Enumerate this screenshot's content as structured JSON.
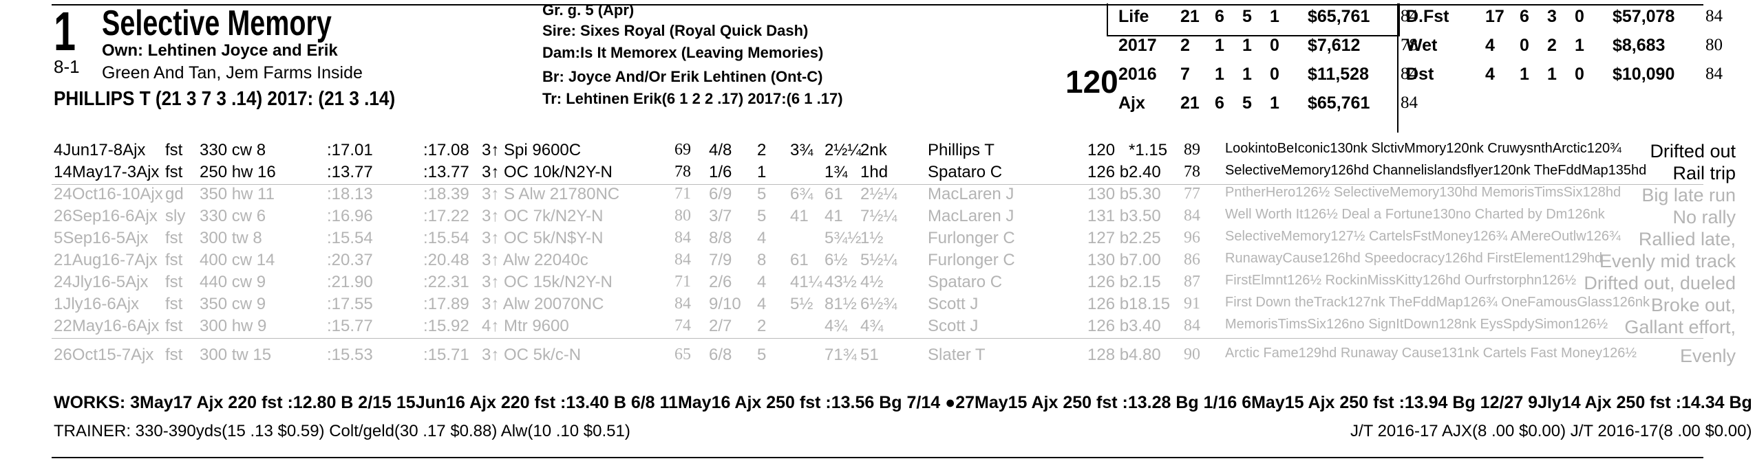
{
  "horse": {
    "program_number": "1",
    "name": "Selective Memory",
    "odds": "8-1",
    "owner": "Own: Lehtinen Joyce and Erik",
    "silks": "Green And Tan, Jem Farms Inside",
    "jockey_line": "PHILLIPS T (21 3 7 3 .14) 2017: (21 3 .14)",
    "weight": "120"
  },
  "breeding": {
    "sex_age": "Gr. g. 5 (Apr)",
    "sire": "Sire: Sixes Royal (Royal Quick Dash)",
    "dam": "Dam:Is It Memorex (Leaving Memories)",
    "breeder": "Br:    Joyce And/Or Erik Lehtinen (Ont-C)",
    "trainer": "Tr:     Lehtinen Erik(6 1 2 2 .17)  2017:(6 1 .17)"
  },
  "stats_left": [
    {
      "label": "Life",
      "starts": "21",
      "w": "6",
      "p": "5",
      "s": "1",
      "earn": "$65,761",
      "speed": "84"
    },
    {
      "label": "2017",
      "starts": "2",
      "w": "1",
      "p": "1",
      "s": "0",
      "earn": "$7,612",
      "speed": "78"
    },
    {
      "label": "2016",
      "starts": "7",
      "w": "1",
      "p": "1",
      "s": "0",
      "earn": "$11,528",
      "speed": "84"
    },
    {
      "label": "Ajx",
      "starts": "21",
      "w": "6",
      "p": "5",
      "s": "1",
      "earn": "$65,761",
      "speed": "84"
    }
  ],
  "stats_right": [
    {
      "label": "D.Fst",
      "starts": "17",
      "w": "6",
      "p": "3",
      "s": "0",
      "earn": "$57,078",
      "speed": "84"
    },
    {
      "label": "Wet",
      "starts": "4",
      "w": "0",
      "p": "2",
      "s": "1",
      "earn": "$8,683",
      "speed": "80"
    },
    {
      "label": "Dst",
      "starts": "4",
      "w": "1",
      "p": "1",
      "s": "0",
      "earn": "$10,090",
      "speed": "84"
    }
  ],
  "past_performances": [
    {
      "date": "4Jun17-8Ajx",
      "cond": "fst",
      "dist": "330 cw 8",
      "f1": ":17.01",
      "f2": ":17.08",
      "race": "3↑ Spi 9600C",
      "spd": "69",
      "pp": "4/8",
      "st": "2",
      "c1": "3¾",
      "c2": "2½¼",
      "fin": "2nk",
      "jock": "Phillips T",
      "wt": "120",
      "odds": "*1.15",
      "sp2": "89",
      "comp": "LookintoBeIconic130nk SlctivMmory120nk CruwysnthArctic120¾",
      "comment": "Drifted out",
      "faded": false
    },
    {
      "date": "14May17-3Ajx",
      "cond": "fst",
      "dist": "250 hw 16",
      "f1": ":13.77",
      "f2": ":13.77",
      "race": "3↑ OC 10k/N2Y-N",
      "spd": "78",
      "pp": "1/6",
      "st": "1",
      "c1": "",
      "c2": "1¾",
      "fin": "1hd",
      "jock": "Spataro C",
      "wt": "126 b",
      "odds": "2.40",
      "sp2": "78",
      "comp": "SelectiveMemory126hd Channelislandsflyer120nk TheFddMap135hd",
      "comment": "Rail trip",
      "faded": false
    },
    {
      "date": "24Oct16-10Ajx",
      "cond": "gd",
      "dist": "350 hw 11",
      "f1": ":18.13",
      "f2": ":18.39",
      "race": "3↑ S Alw 21780NC",
      "spd": "71",
      "pp": "6/9",
      "st": "5",
      "c1": "6¾",
      "c2": "61",
      "fin": "2½¼",
      "jock": "MacLaren J",
      "wt": "130 b",
      "odds": "5.30",
      "sp2": "77",
      "comp": "PntherHero126½ SelectiveMemory130hd MemorisTimsSix128hd",
      "comment": "Big late run",
      "faded": true
    },
    {
      "date": "26Sep16-6Ajx",
      "cond": "sly",
      "dist": "330 cw 6",
      "f1": ":16.96",
      "f2": ":17.22",
      "race": "3↑ OC 7k/N2Y-N",
      "spd": "80",
      "pp": "3/7",
      "st": "5",
      "c1": "41",
      "c2": "41",
      "fin": "7½¼",
      "jock": "MacLaren J",
      "wt": "131 b",
      "odds": "3.50",
      "sp2": "84",
      "comp": "Well Worth It126½ Deal a Fortune130no Charted by Dm126nk",
      "comment": "No rally",
      "faded": true
    },
    {
      "date": "5Sep16-5Ajx",
      "cond": "fst",
      "dist": "300 tw 8",
      "f1": ":15.54",
      "f2": ":15.54",
      "race": "3↑ OC 5k/N$Y-N",
      "spd": "84",
      "pp": "8/8",
      "st": "4",
      "c1": "",
      "c2": "5¾½",
      "fin": "1½",
      "jock": "Furlonger C",
      "wt": "127 b",
      "odds": "2.25",
      "sp2": "96",
      "comp": "SelectiveMemory127½ CartelsFstMoney126¾ AMereOutlw126¾",
      "comment": "Rallied late,",
      "faded": true
    },
    {
      "date": "21Aug16-7Ajx",
      "cond": "fst",
      "dist": "400 cw 14",
      "f1": ":20.37",
      "f2": ":20.48",
      "race": "3↑ Alw 22040c",
      "spd": "84",
      "pp": "7/9",
      "st": "8",
      "c1": "61",
      "c2": "6½",
      "fin": "5½¼",
      "jock": "Furlonger C",
      "wt": "130 b",
      "odds": "7.00",
      "sp2": "86",
      "comp": "RunawayCause126hd Speedocracy126hd FirstElement129hd",
      "comment": "Evenly mid track",
      "faded": true
    },
    {
      "date": "24Jly16-5Ajx",
      "cond": "fst",
      "dist": "440 cw 9",
      "f1": ":21.90",
      "f2": ":22.31",
      "race": "3↑ OC 15k/N2Y-N",
      "spd": "71",
      "pp": "2/6",
      "st": "4",
      "c1": "41¼",
      "c2": "43½",
      "fin": "4½",
      "jock": "Spataro C",
      "wt": "126 b",
      "odds": "2.15",
      "sp2": "87",
      "comp": "FirstElmnt126½ RockinMissKitty126hd Ourfrstorphn126½",
      "comment": "Drifted out, dueled",
      "faded": true
    },
    {
      "date": "1Jly16-6Ajx",
      "cond": "fst",
      "dist": "350 cw 9",
      "f1": ":17.55",
      "f2": ":17.89",
      "race": "3↑ Alw 20070NC",
      "spd": "84",
      "pp": "9/10",
      "st": "4",
      "c1": "5½",
      "c2": "81½",
      "fin": "6½¾",
      "jock": "Scott J",
      "wt": "126 b",
      "odds": "18.15",
      "sp2": "91",
      "comp": "First Down theTrack127nk TheFddMap126¾ OneFamousGlass126nk",
      "comment": "Broke out,",
      "faded": true
    },
    {
      "date": "22May16-6Ajx",
      "cond": "fst",
      "dist": "300 hw 9",
      "f1": ":15.77",
      "f2": ":15.92",
      "race": "4↑ Mtr 9600",
      "spd": "74",
      "pp": "2/7",
      "st": "2",
      "c1": "",
      "c2": "4¾",
      "fin": "4¾",
      "jock": "Scott J",
      "wt": "126 b",
      "odds": "3.40",
      "sp2": "84",
      "comp": "MemorisTimsSix126no SignItDown128nk EysSpdySimon126½",
      "comment": "Gallant effort,",
      "faded": true
    },
    {
      "date": "26Oct15-7Ajx",
      "cond": "fst",
      "dist": "300 tw 15",
      "f1": ":15.53",
      "f2": ":15.71",
      "race": "3↑ OC 5k/c-N",
      "spd": "65",
      "pp": "6/8",
      "st": "5",
      "c1": "",
      "c2": "71¾",
      "fin": "51",
      "jock": "Slater T",
      "wt": "128 b",
      "odds": "4.80",
      "sp2": "90",
      "comp": "Arctic Fame129hd Runaway Cause131nk Cartels Fast Money126½",
      "comment": "Evenly",
      "faded": true
    }
  ],
  "works": "WORKS:    3May17 Ajx 220 fst  :12.80 B 2/15   15Jun16 Ajx 220 fst  :13.40 B 6/8   11May16 Ajx 250 fst  :13.56 Bg 7/14   ●27May15 Ajx 250 fst  :13.28 Bg 1/16   6May15 Ajx 250 fst  :13.94 Bg 12/27   9Jly14 Ajx 250 fst  :14.34 Bg 11/35",
  "trainer_stats": "TRAINER: 330-390yds(15 .13 $0.59) Colt/geld(30 .17 $0.88) Alw(10 .10 $0.51)",
  "jt_stats": "J/T 2016-17 AJX(8 .00 $0.00)  J/T 2016-17(8 .00 $0.00)"
}
